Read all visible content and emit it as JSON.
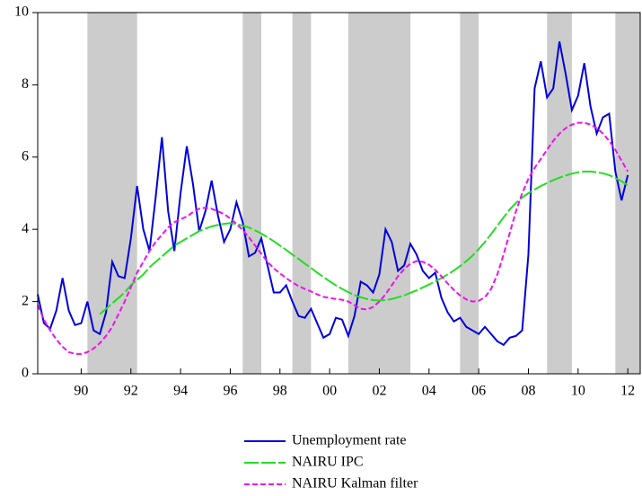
{
  "chart_data": {
    "type": "line",
    "x": [
      1988.75,
      1989,
      1989.25,
      1989.5,
      1989.75,
      1990,
      1990.25,
      1990.5,
      1990.75,
      1991,
      1991.25,
      1991.5,
      1991.75,
      1992,
      1992.25,
      1992.5,
      1992.75,
      1993,
      1993.25,
      1993.5,
      1993.75,
      1994,
      1994.25,
      1994.5,
      1994.75,
      1995,
      1995.25,
      1995.5,
      1995.75,
      1996,
      1996.25,
      1996.5,
      1996.75,
      1997,
      1997.25,
      1997.5,
      1997.75,
      1998,
      1998.25,
      1998.5,
      1998.75,
      1999,
      1999.25,
      1999.5,
      1999.75,
      2000,
      2000.25,
      2000.5,
      2000.75,
      2001,
      2001.25,
      2001.5,
      2001.75,
      2002,
      2002.25,
      2002.5,
      2002.75,
      2003,
      2003.25,
      2003.5,
      2003.75,
      2004,
      2004.25,
      2004.5,
      2004.75,
      2005,
      2005.25,
      2005.5,
      2005.75,
      2006,
      2006.25,
      2006.5,
      2006.75,
      2007,
      2007.25,
      2007.5,
      2007.75,
      2008,
      2008.25,
      2008.5,
      2008.75,
      2009,
      2009.25,
      2009.5,
      2009.75,
      2010,
      2010.25,
      2010.5,
      2010.75,
      2011,
      2011.25,
      2011.5,
      2011.75,
      2012,
      2012.25,
      2012.5
    ],
    "series": [
      {
        "name": "Unemployment rate",
        "color": "#0000dd",
        "dash": "none",
        "values": [
          2.2,
          1.4,
          1.25,
          1.75,
          2.65,
          1.75,
          1.35,
          1.4,
          2.0,
          1.2,
          1.1,
          1.7,
          3.1,
          2.7,
          2.65,
          3.75,
          5.2,
          4.0,
          3.4,
          4.9,
          6.55,
          4.5,
          3.4,
          5.0,
          6.3,
          5.25,
          3.95,
          4.5,
          5.35,
          4.4,
          3.65,
          4.0,
          4.75,
          4.2,
          3.25,
          3.35,
          3.75,
          3.0,
          2.25,
          2.25,
          2.45,
          2.0,
          1.6,
          1.55,
          1.8,
          1.4,
          1.0,
          1.1,
          1.55,
          1.5,
          1.05,
          1.6,
          2.55,
          2.45,
          2.25,
          2.75,
          4.0,
          3.65,
          2.85,
          3.0,
          3.6,
          3.3,
          2.85,
          2.65,
          2.8,
          2.1,
          1.7,
          1.45,
          1.55,
          1.3,
          1.2,
          1.1,
          1.3,
          1.1,
          0.9,
          0.8,
          1.0,
          1.05,
          1.2,
          3.3,
          7.9,
          8.65,
          7.65,
          7.9,
          9.2,
          8.3,
          7.3,
          7.7,
          8.6,
          7.4,
          6.65,
          7.1,
          7.2,
          5.6,
          4.8,
          5.5
        ]
      },
      {
        "name": "NAIRU IPC",
        "color": "#22dd22",
        "dash": "16 3",
        "values": [
          null,
          null,
          null,
          null,
          null,
          null,
          null,
          null,
          null,
          null,
          1.65,
          1.8,
          1.95,
          2.1,
          2.25,
          2.45,
          2.6,
          2.75,
          2.95,
          3.1,
          3.25,
          3.4,
          3.55,
          3.65,
          3.75,
          3.85,
          3.95,
          4.02,
          4.08,
          4.12,
          4.15,
          4.17,
          4.15,
          4.1,
          4.05,
          3.97,
          3.88,
          3.78,
          3.67,
          3.55,
          3.43,
          3.3,
          3.18,
          3.05,
          2.93,
          2.8,
          2.68,
          2.56,
          2.45,
          2.35,
          2.26,
          2.18,
          2.12,
          2.07,
          2.04,
          2.03,
          2.04,
          2.07,
          2.12,
          2.17,
          2.24,
          2.31,
          2.39,
          2.47,
          2.56,
          2.65,
          2.75,
          2.86,
          2.98,
          3.12,
          3.27,
          3.45,
          3.65,
          3.87,
          4.1,
          4.33,
          4.55,
          4.73,
          4.88,
          5.0,
          5.1,
          5.2,
          5.28,
          5.36,
          5.43,
          5.49,
          5.54,
          5.58,
          5.6,
          5.6,
          5.58,
          5.55,
          5.5,
          5.42,
          5.33,
          5.22
        ]
      },
      {
        "name": "NAIRU Kalman filter",
        "color": "#ee11ee",
        "dash": "6 3",
        "values": [
          1.9,
          1.5,
          1.2,
          0.95,
          0.75,
          0.6,
          0.55,
          0.55,
          0.6,
          0.7,
          0.85,
          1.05,
          1.3,
          1.65,
          2.0,
          2.4,
          2.8,
          3.1,
          3.4,
          3.65,
          3.85,
          4.05,
          4.2,
          4.28,
          4.35,
          4.48,
          4.57,
          4.6,
          4.57,
          4.5,
          4.42,
          4.3,
          4.15,
          3.98,
          3.78,
          3.55,
          3.32,
          3.1,
          2.92,
          2.78,
          2.65,
          2.53,
          2.43,
          2.35,
          2.28,
          2.2,
          2.13,
          2.1,
          2.07,
          2.05,
          2.0,
          1.9,
          1.8,
          1.78,
          1.85,
          2.0,
          2.2,
          2.45,
          2.7,
          2.9,
          3.05,
          3.12,
          3.1,
          3.02,
          2.88,
          2.7,
          2.5,
          2.32,
          2.17,
          2.06,
          2.0,
          2.02,
          2.12,
          2.35,
          2.75,
          3.3,
          3.9,
          4.5,
          5.0,
          5.4,
          5.7,
          5.95,
          6.2,
          6.45,
          6.65,
          6.8,
          6.9,
          6.95,
          6.95,
          6.9,
          6.8,
          6.65,
          6.45,
          6.2,
          5.9,
          5.6
        ]
      }
    ],
    "shaded_periods": [
      [
        1990.75,
        1992.75
      ],
      [
        1997.0,
        1997.75
      ],
      [
        1999.0,
        1999.75
      ],
      [
        2001.25,
        2003.75
      ],
      [
        2005.75,
        2006.5
      ],
      [
        2009.25,
        2010.25
      ],
      [
        2012.0,
        2013.0
      ]
    ],
    "shade_color": "#cccccc",
    "xlim": [
      1988.75,
      2013
    ],
    "xticks": [
      {
        "value": 1990.5,
        "label": "90"
      },
      {
        "value": 1992.5,
        "label": "92"
      },
      {
        "value": 1994.5,
        "label": "94"
      },
      {
        "value": 1996.5,
        "label": "96"
      },
      {
        "value": 1998.5,
        "label": "98"
      },
      {
        "value": 2000.5,
        "label": "00"
      },
      {
        "value": 2002.5,
        "label": "02"
      },
      {
        "value": 2004.5,
        "label": "04"
      },
      {
        "value": 2006.5,
        "label": "06"
      },
      {
        "value": 2008.5,
        "label": "08"
      },
      {
        "value": 2010.5,
        "label": "10"
      },
      {
        "value": 2012.5,
        "label": "12"
      }
    ],
    "ylim": [
      0,
      10
    ],
    "yticks": [
      0,
      2,
      4,
      6,
      8,
      10
    ],
    "grid": false,
    "legend": "bottom"
  }
}
